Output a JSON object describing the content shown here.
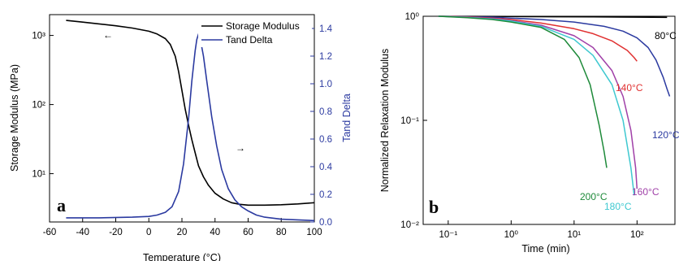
{
  "chart_data": [
    {
      "type": "line",
      "panel_label": "a",
      "xlabel": "Temperature (°C)",
      "ylabel": "Storage Modulus (MPa)",
      "y2label": "Tand Delta",
      "xlim": [
        -60,
        100
      ],
      "ylim": [
        2,
        2000
      ],
      "yscale": "log",
      "y2lim": [
        0,
        1.5
      ],
      "x_ticks": [
        "-60",
        "-40",
        "-20",
        "0",
        "20",
        "40",
        "60",
        "80",
        "100"
      ],
      "y_ticks": [
        "10¹",
        "10²",
        "10³"
      ],
      "y2_ticks": [
        "0.0",
        "0.2",
        "0.4",
        "0.6",
        "0.8",
        "1.0",
        "1.2",
        "1.4"
      ],
      "legend": [
        "Storage Modulus",
        "Tand Delta"
      ],
      "legend_position": "top-right",
      "series": [
        {
          "name": "Storage Modulus",
          "color": "#000000",
          "axis": "left",
          "x": [
            -50,
            -40,
            -30,
            -20,
            -10,
            0,
            5,
            10,
            13,
            16,
            18,
            20,
            22,
            24,
            26,
            28,
            30,
            33,
            36,
            40,
            45,
            50,
            55,
            60,
            70,
            80,
            90,
            100
          ],
          "y": [
            1650,
            1560,
            1470,
            1380,
            1280,
            1150,
            1050,
            900,
            740,
            500,
            300,
            160,
            85,
            50,
            31,
            20,
            13,
            9,
            6.8,
            5.2,
            4.3,
            3.8,
            3.6,
            3.5,
            3.5,
            3.55,
            3.65,
            3.8
          ]
        },
        {
          "name": "Tand Delta",
          "color": "#2b3aa0",
          "axis": "right",
          "x": [
            -50,
            -30,
            -10,
            0,
            5,
            10,
            14,
            18,
            21,
            24,
            26,
            28,
            29,
            30,
            31,
            33,
            35,
            38,
            41,
            44,
            48,
            52,
            56,
            60,
            65,
            70,
            80,
            90,
            100
          ],
          "y": [
            0.03,
            0.03,
            0.035,
            0.04,
            0.05,
            0.07,
            0.11,
            0.22,
            0.42,
            0.75,
            1.02,
            1.24,
            1.32,
            1.36,
            1.33,
            1.2,
            1.02,
            0.76,
            0.55,
            0.38,
            0.24,
            0.16,
            0.11,
            0.08,
            0.05,
            0.035,
            0.02,
            0.015,
            0.01
          ]
        }
      ],
      "annotations": [
        "←",
        "→"
      ]
    },
    {
      "type": "line",
      "panel_label": "b",
      "xlabel": "Time (min)",
      "ylabel": "Normalized Relaxation Modulus",
      "xscale": "log",
      "yscale": "log",
      "xlim": [
        0.04,
        400
      ],
      "ylim": [
        0.01,
        1
      ],
      "x_ticks": [
        "10⁻¹",
        "10⁰",
        "10¹",
        "10²"
      ],
      "y_ticks": [
        "10⁻²",
        "10⁻¹",
        "10⁰"
      ],
      "series": [
        {
          "name": "80°C",
          "color": "#000000",
          "x": [
            0.07,
            0.2,
            1,
            5,
            20,
            100,
            300
          ],
          "y": [
            1,
            0.998,
            0.995,
            0.99,
            0.985,
            0.98,
            0.975
          ]
        },
        {
          "name": "120°C",
          "color": "#2b3aa0",
          "x": [
            0.07,
            0.2,
            0.5,
            1,
            3,
            10,
            30,
            60,
            100,
            150,
            200,
            260,
            300,
            330
          ],
          "y": [
            1,
            0.99,
            0.98,
            0.96,
            0.93,
            0.88,
            0.8,
            0.72,
            0.62,
            0.5,
            0.38,
            0.26,
            0.2,
            0.17
          ]
        },
        {
          "name": "140°C",
          "color": "#e03030",
          "x": [
            0.07,
            0.2,
            0.5,
            1,
            3,
            10,
            20,
            40,
            70,
            90,
            100
          ],
          "y": [
            1,
            0.985,
            0.96,
            0.93,
            0.86,
            0.76,
            0.68,
            0.58,
            0.47,
            0.4,
            0.37
          ]
        },
        {
          "name": "160°C",
          "color": "#a040a8",
          "x": [
            0.07,
            0.2,
            0.5,
            1,
            3,
            10,
            20,
            40,
            60,
            80,
            95,
            100
          ],
          "y": [
            1,
            0.98,
            0.95,
            0.91,
            0.82,
            0.65,
            0.5,
            0.3,
            0.17,
            0.08,
            0.035,
            0.022
          ]
        },
        {
          "name": "180°C",
          "color": "#3ec8d0",
          "x": [
            0.07,
            0.2,
            0.5,
            1,
            3,
            10,
            20,
            40,
            60,
            80,
            90
          ],
          "y": [
            1,
            0.975,
            0.94,
            0.9,
            0.8,
            0.6,
            0.42,
            0.22,
            0.1,
            0.035,
            0.019
          ]
        },
        {
          "name": "200°C",
          "color": "#1e8a3a",
          "x": [
            0.07,
            0.2,
            0.5,
            1,
            3,
            7,
            12,
            18,
            25,
            30,
            33
          ],
          "y": [
            1,
            0.97,
            0.93,
            0.88,
            0.78,
            0.6,
            0.4,
            0.22,
            0.09,
            0.05,
            0.035
          ]
        }
      ]
    }
  ]
}
